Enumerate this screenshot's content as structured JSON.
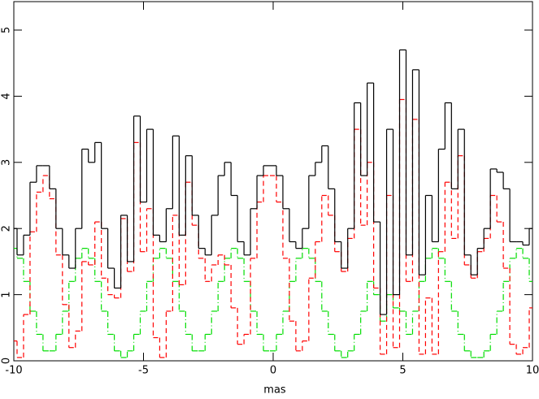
{
  "chart_data": {
    "type": "step",
    "xlabel": "mas",
    "xlim": [
      -10,
      10
    ],
    "ylim": [
      0,
      5.43
    ],
    "xticks": [
      -10,
      -5,
      0,
      5,
      10
    ],
    "yticks": [
      0,
      1,
      2,
      3,
      4,
      5
    ],
    "x": [
      -10,
      -9.75,
      -9.5,
      -9.25,
      -9,
      -8.75,
      -8.5,
      -8.25,
      -8,
      -7.75,
      -7.5,
      -7.25,
      -7,
      -6.75,
      -6.5,
      -6.25,
      -6,
      -5.75,
      -5.5,
      -5.25,
      -5,
      -4.75,
      -4.5,
      -4.25,
      -4,
      -3.75,
      -3.5,
      -3.25,
      -3,
      -2.75,
      -2.5,
      -2.25,
      -2,
      -1.75,
      -1.5,
      -1.25,
      -1,
      -0.75,
      -0.5,
      -0.25,
      0,
      0.25,
      0.5,
      0.75,
      1,
      1.25,
      1.5,
      1.75,
      2,
      2.25,
      2.5,
      2.75,
      3,
      3.25,
      3.5,
      3.75,
      4,
      4.25,
      4.5,
      4.75,
      5,
      5.25,
      5.5,
      5.75,
      6,
      6.25,
      6.5,
      6.75,
      7,
      7.25,
      7.5,
      7.75,
      8,
      8.25,
      8.5,
      8.75,
      9,
      9.25,
      9.5,
      9.75,
      10
    ],
    "series": [
      {
        "color": "#000000",
        "dash": "none",
        "values": [
          2.0,
          1.6,
          1.9,
          2.7,
          2.95,
          2.95,
          2.6,
          2.0,
          1.6,
          1.4,
          2.0,
          3.2,
          3.0,
          3.3,
          2.0,
          1.4,
          1.1,
          2.2,
          1.5,
          3.7,
          2.4,
          3.5,
          1.9,
          1.8,
          2.3,
          3.4,
          1.9,
          3.1,
          2.2,
          1.7,
          1.6,
          2.2,
          2.8,
          3.0,
          2.5,
          1.8,
          1.6,
          2.3,
          2.8,
          2.95,
          2.95,
          2.8,
          2.3,
          1.8,
          1.7,
          2.0,
          2.8,
          3.0,
          3.25,
          2.6,
          1.8,
          1.4,
          2.0,
          3.9,
          2.8,
          4.2,
          2.1,
          0.7,
          3.5,
          1.0,
          4.7,
          1.6,
          4.4,
          1.3,
          2.5,
          1.8,
          3.2,
          3.9,
          2.6,
          3.5,
          1.6,
          1.3,
          1.7,
          2.0,
          2.9,
          2.85,
          2.6,
          1.8,
          1.8,
          1.75,
          2.0
        ]
      },
      {
        "color": "#ff0000",
        "dash": "6,4",
        "values": [
          0.3,
          0.05,
          0.7,
          1.95,
          2.55,
          2.8,
          2.45,
          1.6,
          0.85,
          0.2,
          0.45,
          1.5,
          1.45,
          2.1,
          1.25,
          1.0,
          0.95,
          2.15,
          1.35,
          3.3,
          1.65,
          2.3,
          0.35,
          0.05,
          0.75,
          2.2,
          1.15,
          2.7,
          2.05,
          1.55,
          1.2,
          1.45,
          1.6,
          1.45,
          0.8,
          0.25,
          0.4,
          1.55,
          2.4,
          2.8,
          2.8,
          2.4,
          1.55,
          0.6,
          0.15,
          0.3,
          1.25,
          1.8,
          2.5,
          2.2,
          1.65,
          1.35,
          1.85,
          3.5,
          2.05,
          3.0,
          1.1,
          0.1,
          2.5,
          0.2,
          3.95,
          1.2,
          3.65,
          0.1,
          0.95,
          0.1,
          1.65,
          2.7,
          1.85,
          3.1,
          1.45,
          1.25,
          1.65,
          1.85,
          2.5,
          2.1,
          1.4,
          0.25,
          0.1,
          0.2,
          0.8
        ]
      },
      {
        "color": "#00dd00",
        "dash": "7,3,1,3",
        "values": [
          1.7,
          1.55,
          1.2,
          0.75,
          0.4,
          0.15,
          0.15,
          0.4,
          0.75,
          1.2,
          1.55,
          1.7,
          1.55,
          1.2,
          0.75,
          0.4,
          0.15,
          0.05,
          0.15,
          0.4,
          0.75,
          1.2,
          1.55,
          1.7,
          1.55,
          1.2,
          0.75,
          0.4,
          0.15,
          0.15,
          0.4,
          0.75,
          1.2,
          1.55,
          1.7,
          1.55,
          1.2,
          0.75,
          0.4,
          0.15,
          0.15,
          0.4,
          0.75,
          1.2,
          1.55,
          1.7,
          1.55,
          1.2,
          0.75,
          0.4,
          0.15,
          0.05,
          0.15,
          0.4,
          0.75,
          1.2,
          1.0,
          0.6,
          1.0,
          0.8,
          0.75,
          0.4,
          0.75,
          1.2,
          1.55,
          1.7,
          1.55,
          1.2,
          0.75,
          0.4,
          0.15,
          0.05,
          0.05,
          0.15,
          0.4,
          0.75,
          1.2,
          1.55,
          1.7,
          1.55,
          1.2
        ]
      }
    ]
  }
}
